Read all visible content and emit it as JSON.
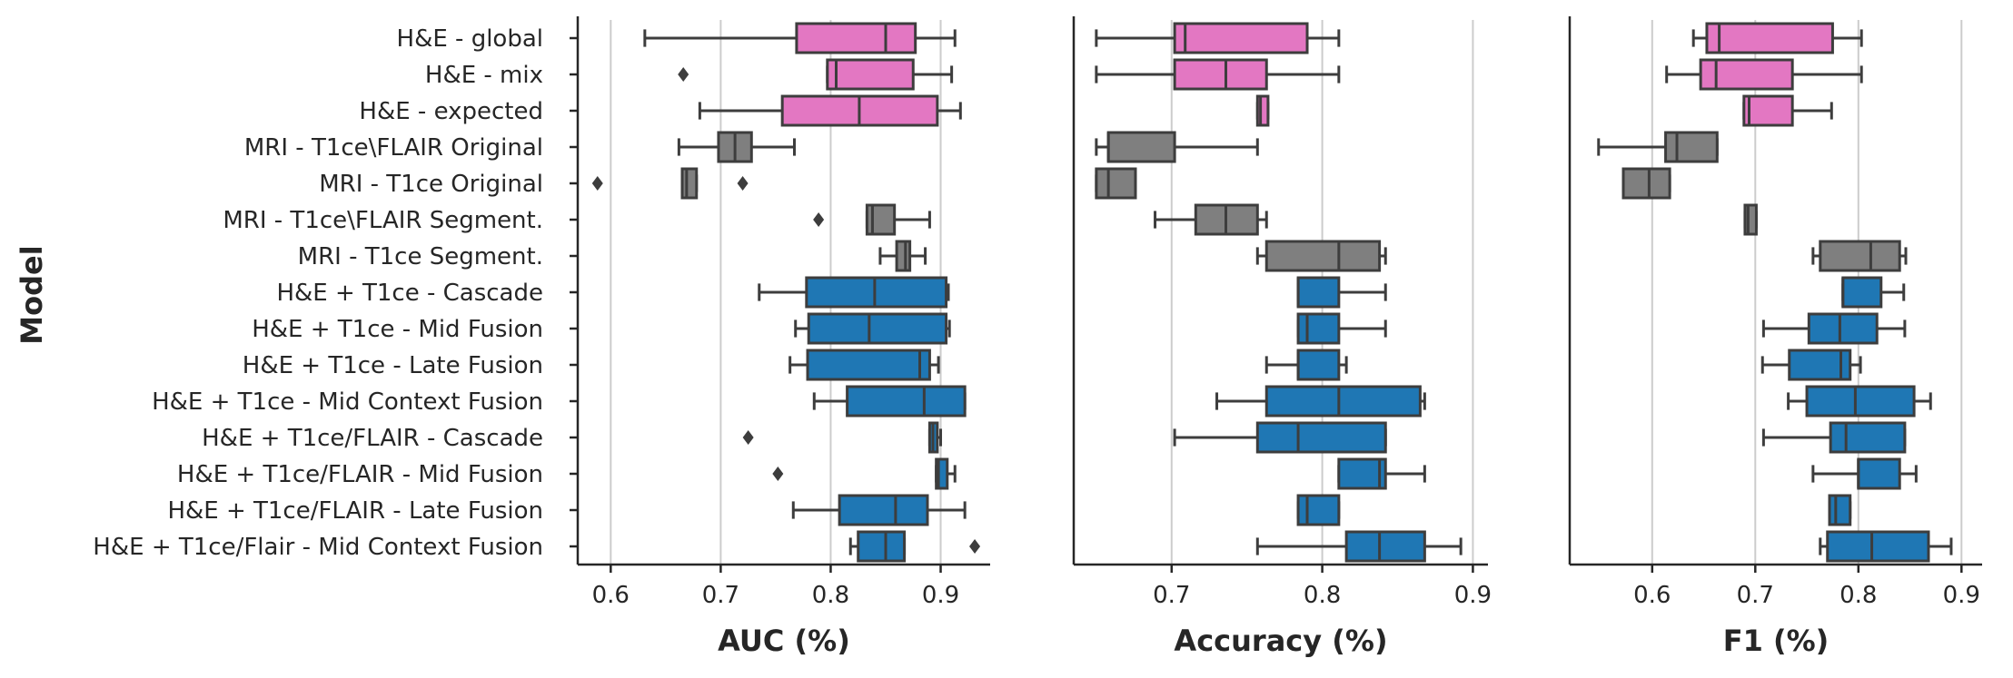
{
  "colors": {
    "pink": "#e377c2",
    "gray": "#7f7f7f",
    "blue": "#1f77b4",
    "edge": "#3d3d3d",
    "grid": "#cccccc",
    "text": "#262626"
  },
  "chart_data": {
    "type": "box",
    "ylabel": "Model",
    "categories": [
      "H&E - global",
      "H&E - mix",
      "H&E - expected",
      "MRI - T1ce\\FLAIR Original",
      "MRI - T1ce Original",
      "MRI - T1ce\\FLAIR Segment.",
      "MRI - T1ce Segment.",
      "H&E + T1ce - Cascade",
      "H&E + T1ce - Mid Fusion",
      "H&E + T1ce - Late Fusion",
      "H&E + T1ce - Mid  Context Fusion",
      "H&E + T1ce/FLAIR - Cascade",
      "H&E + T1ce/FLAIR - Mid Fusion",
      "H&E + T1ce/FLAIR - Late Fusion",
      "H&E + T1ce/Flair - Mid  Context Fusion"
    ],
    "category_colors": [
      "pink",
      "pink",
      "pink",
      "gray",
      "gray",
      "gray",
      "gray",
      "blue",
      "blue",
      "blue",
      "blue",
      "blue",
      "blue",
      "blue",
      "blue"
    ],
    "panels": [
      {
        "xlabel": "AUC (%)",
        "xlim": [
          0.57,
          0.945
        ],
        "xticks": [
          0.6,
          0.7,
          0.8,
          0.9
        ],
        "xtick_labels": [
          "0.6",
          "0.7",
          "0.8",
          "0.9"
        ],
        "grid": true,
        "boxes": [
          {
            "whislo": 0.631,
            "q1": 0.769,
            "med": 0.85,
            "q3": 0.877,
            "whishi": 0.913,
            "fliers": []
          },
          {
            "whislo": 0.797,
            "q1": 0.797,
            "med": 0.805,
            "q3": 0.875,
            "whishi": 0.91,
            "fliers": [
              0.666
            ]
          },
          {
            "whislo": 0.681,
            "q1": 0.756,
            "med": 0.826,
            "q3": 0.897,
            "whishi": 0.918,
            "fliers": []
          },
          {
            "whislo": 0.662,
            "q1": 0.698,
            "med": 0.713,
            "q3": 0.728,
            "whishi": 0.767,
            "fliers": []
          },
          {
            "whislo": 0.665,
            "q1": 0.665,
            "med": 0.669,
            "q3": 0.678,
            "whishi": 0.678,
            "fliers": [
              0.588,
              0.72
            ]
          },
          {
            "whislo": 0.833,
            "q1": 0.833,
            "med": 0.838,
            "q3": 0.858,
            "whishi": 0.89,
            "fliers": [
              0.789
            ]
          },
          {
            "whislo": 0.845,
            "q1": 0.86,
            "med": 0.868,
            "q3": 0.872,
            "whishi": 0.886,
            "fliers": []
          },
          {
            "whislo": 0.735,
            "q1": 0.778,
            "med": 0.84,
            "q3": 0.905,
            "whishi": 0.907,
            "fliers": []
          },
          {
            "whislo": 0.768,
            "q1": 0.78,
            "med": 0.835,
            "q3": 0.905,
            "whishi": 0.908,
            "fliers": []
          },
          {
            "whislo": 0.763,
            "q1": 0.779,
            "med": 0.881,
            "q3": 0.89,
            "whishi": 0.898,
            "fliers": []
          },
          {
            "whislo": 0.785,
            "q1": 0.815,
            "med": 0.885,
            "q3": 0.922,
            "whishi": 0.922,
            "fliers": []
          },
          {
            "whislo": 0.89,
            "q1": 0.89,
            "med": 0.893,
            "q3": 0.897,
            "whishi": 0.9,
            "fliers": [
              0.725
            ]
          },
          {
            "whislo": 0.896,
            "q1": 0.896,
            "med": 0.898,
            "q3": 0.906,
            "whishi": 0.913,
            "fliers": [
              0.752
            ]
          },
          {
            "whislo": 0.766,
            "q1": 0.808,
            "med": 0.859,
            "q3": 0.888,
            "whishi": 0.922,
            "fliers": []
          },
          {
            "whislo": 0.818,
            "q1": 0.825,
            "med": 0.85,
            "q3": 0.867,
            "whishi": 0.867,
            "fliers": [
              0.931
            ]
          }
        ]
      },
      {
        "xlabel": "Accuracy (%)",
        "xlim": [
          0.635,
          0.91
        ],
        "xticks": [
          0.7,
          0.8,
          0.9
        ],
        "xtick_labels": [
          "0.7",
          "0.8",
          "0.9"
        ],
        "grid": true,
        "boxes": [
          {
            "whislo": 0.65,
            "q1": 0.702,
            "med": 0.709,
            "q3": 0.79,
            "whishi": 0.811,
            "fliers": []
          },
          {
            "whislo": 0.65,
            "q1": 0.702,
            "med": 0.736,
            "q3": 0.763,
            "whishi": 0.811,
            "fliers": []
          },
          {
            "whislo": 0.757,
            "q1": 0.757,
            "med": 0.759,
            "q3": 0.764,
            "whishi": 0.764,
            "fliers": []
          },
          {
            "whislo": 0.65,
            "q1": 0.658,
            "med": 0.658,
            "q3": 0.702,
            "whishi": 0.757,
            "fliers": []
          },
          {
            "whislo": 0.65,
            "q1": 0.65,
            "med": 0.658,
            "q3": 0.676,
            "whishi": 0.676,
            "fliers": []
          },
          {
            "whislo": 0.689,
            "q1": 0.716,
            "med": 0.736,
            "q3": 0.757,
            "whishi": 0.763,
            "fliers": []
          },
          {
            "whislo": 0.757,
            "q1": 0.763,
            "med": 0.811,
            "q3": 0.838,
            "whishi": 0.842,
            "fliers": []
          },
          {
            "whislo": 0.784,
            "q1": 0.784,
            "med": 0.784,
            "q3": 0.811,
            "whishi": 0.842,
            "fliers": []
          },
          {
            "whislo": 0.784,
            "q1": 0.784,
            "med": 0.79,
            "q3": 0.811,
            "whishi": 0.842,
            "fliers": []
          },
          {
            "whislo": 0.763,
            "q1": 0.784,
            "med": 0.784,
            "q3": 0.811,
            "whishi": 0.816,
            "fliers": []
          },
          {
            "whislo": 0.73,
            "q1": 0.763,
            "med": 0.811,
            "q3": 0.865,
            "whishi": 0.868,
            "fliers": []
          },
          {
            "whislo": 0.702,
            "q1": 0.757,
            "med": 0.784,
            "q3": 0.842,
            "whishi": 0.842,
            "fliers": []
          },
          {
            "whislo": 0.811,
            "q1": 0.811,
            "med": 0.838,
            "q3": 0.842,
            "whishi": 0.868,
            "fliers": []
          },
          {
            "whislo": 0.784,
            "q1": 0.784,
            "med": 0.79,
            "q3": 0.811,
            "whishi": 0.811,
            "fliers": []
          },
          {
            "whislo": 0.757,
            "q1": 0.816,
            "med": 0.838,
            "q3": 0.868,
            "whishi": 0.892,
            "fliers": []
          }
        ]
      },
      {
        "xlabel": "F1 (%)",
        "xlim": [
          0.52,
          0.92
        ],
        "xticks": [
          0.6,
          0.7,
          0.8,
          0.9
        ],
        "xtick_labels": [
          "0.6",
          "0.7",
          "0.8",
          "0.9"
        ],
        "grid": true,
        "boxes": [
          {
            "whislo": 0.64,
            "q1": 0.653,
            "med": 0.665,
            "q3": 0.775,
            "whishi": 0.803,
            "fliers": []
          },
          {
            "whislo": 0.614,
            "q1": 0.647,
            "med": 0.662,
            "q3": 0.736,
            "whishi": 0.803,
            "fliers": []
          },
          {
            "whislo": 0.689,
            "q1": 0.689,
            "med": 0.694,
            "q3": 0.736,
            "whishi": 0.774,
            "fliers": []
          },
          {
            "whislo": 0.548,
            "q1": 0.613,
            "med": 0.624,
            "q3": 0.663,
            "whishi": 0.663,
            "fliers": []
          },
          {
            "whislo": 0.572,
            "q1": 0.572,
            "med": 0.597,
            "q3": 0.617,
            "whishi": 0.617,
            "fliers": []
          },
          {
            "whislo": 0.69,
            "q1": 0.69,
            "med": 0.693,
            "q3": 0.701,
            "whishi": 0.701,
            "fliers": []
          },
          {
            "whislo": 0.756,
            "q1": 0.763,
            "med": 0.812,
            "q3": 0.84,
            "whishi": 0.846,
            "fliers": []
          },
          {
            "whislo": 0.785,
            "q1": 0.785,
            "med": 0.785,
            "q3": 0.822,
            "whishi": 0.844,
            "fliers": []
          },
          {
            "whislo": 0.708,
            "q1": 0.752,
            "med": 0.782,
            "q3": 0.818,
            "whishi": 0.845,
            "fliers": []
          },
          {
            "whislo": 0.707,
            "q1": 0.733,
            "med": 0.783,
            "q3": 0.792,
            "whishi": 0.802,
            "fliers": []
          },
          {
            "whislo": 0.732,
            "q1": 0.75,
            "med": 0.797,
            "q3": 0.854,
            "whishi": 0.87,
            "fliers": []
          },
          {
            "whislo": 0.708,
            "q1": 0.773,
            "med": 0.788,
            "q3": 0.845,
            "whishi": 0.845,
            "fliers": []
          },
          {
            "whislo": 0.756,
            "q1": 0.8,
            "med": 0.8,
            "q3": 0.84,
            "whishi": 0.856,
            "fliers": []
          },
          {
            "whislo": 0.772,
            "q1": 0.772,
            "med": 0.778,
            "q3": 0.792,
            "whishi": 0.792,
            "fliers": []
          },
          {
            "whislo": 0.763,
            "q1": 0.77,
            "med": 0.813,
            "q3": 0.868,
            "whishi": 0.89,
            "fliers": []
          }
        ]
      }
    ]
  }
}
